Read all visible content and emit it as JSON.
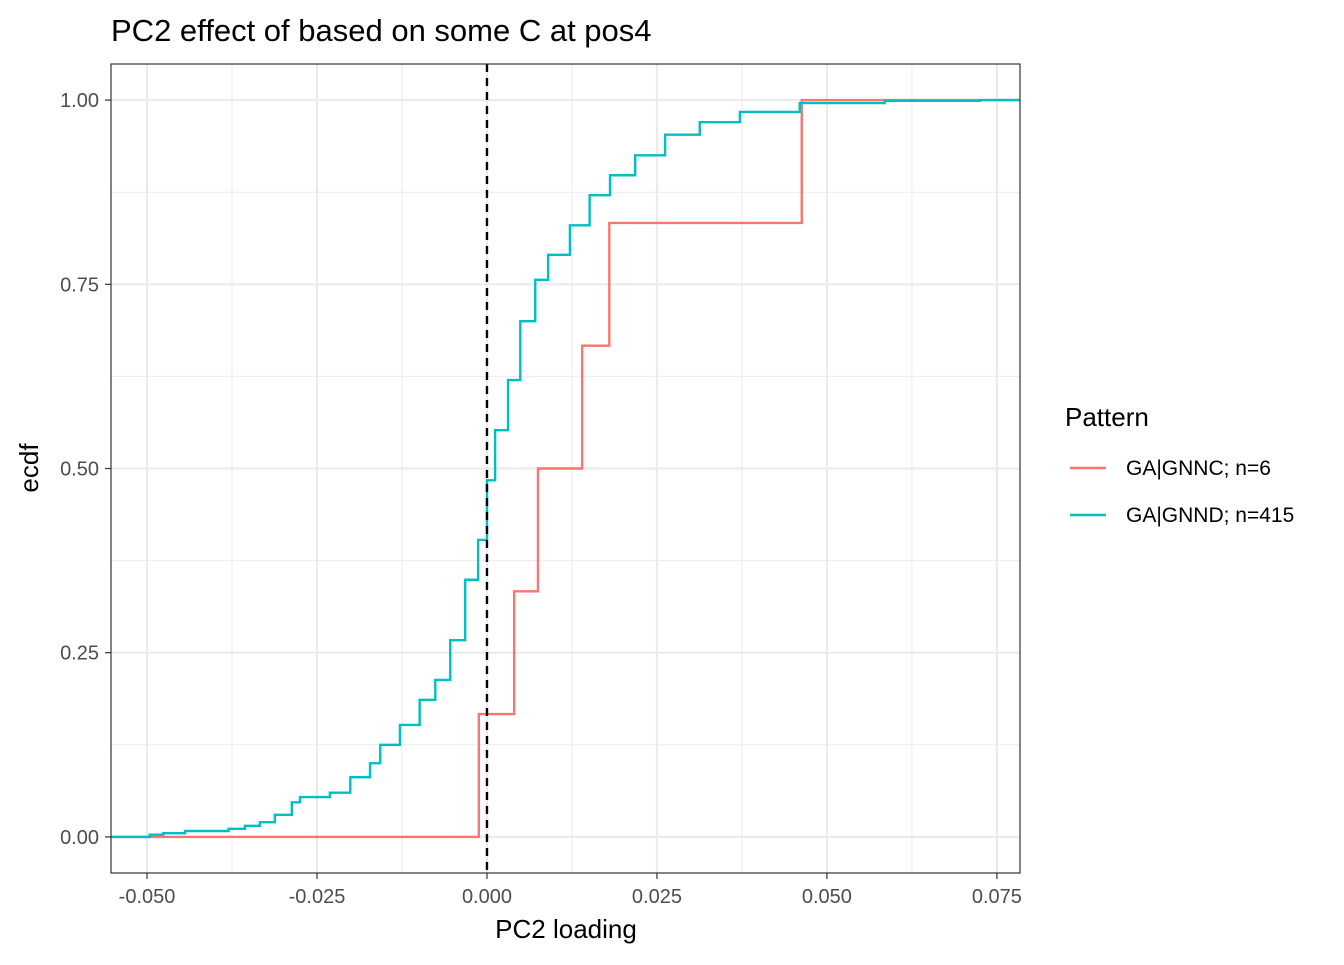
{
  "chart_data": {
    "type": "line",
    "subtype": "ecdf-step",
    "title": "PC2 effect of based on some C at pos4",
    "xlabel": "PC2 loading",
    "ylabel": "ecdf",
    "xlim": [
      -0.0553,
      0.0784
    ],
    "ylim": [
      -0.049,
      1.049
    ],
    "xticks": [
      -0.05,
      -0.025,
      0,
      0.025,
      0.05,
      0.075
    ],
    "xtick_labels": [
      "-0.050",
      "-0.025",
      "0.000",
      "0.025",
      "0.050",
      "0.075"
    ],
    "yticks": [
      0,
      0.25,
      0.5,
      0.75,
      1
    ],
    "ytick_labels": [
      "0.00",
      "0.25",
      "0.50",
      "0.75",
      "1.00"
    ],
    "grid": true,
    "vline": {
      "x": 0,
      "style": "dashed",
      "color": "#000000"
    },
    "legend": {
      "title": "Pattern",
      "position": "right"
    },
    "series": [
      {
        "name": "GA|GNNC; n=6",
        "color": "#F8766D",
        "x": [
          -0.0012,
          0.004,
          0.0075,
          0.014,
          0.018,
          0.0463
        ],
        "y": [
          0.1667,
          0.3333,
          0.5,
          0.6667,
          0.8333,
          1.0
        ]
      },
      {
        "name": "GA|GNND; n=415",
        "color": "#00BFC4",
        "x": [
          -0.0496,
          -0.0476,
          -0.0444,
          -0.038,
          -0.0356,
          -0.0334,
          -0.0312,
          -0.0287,
          -0.0275,
          -0.0231,
          -0.0201,
          -0.0172,
          -0.0157,
          -0.0128,
          -0.0099,
          -0.0076,
          -0.0054,
          -0.0032,
          -0.0013,
          0,
          0.0012,
          0.0031,
          0.0049,
          0.0071,
          0.009,
          0.0122,
          0.0151,
          0.0181,
          0.0218,
          0.0262,
          0.0313,
          0.0372,
          0.046,
          0.0585,
          0.0725
        ],
        "y": [
          0.003,
          0.005,
          0.008,
          0.011,
          0.015,
          0.02,
          0.03,
          0.047,
          0.054,
          0.06,
          0.081,
          0.1,
          0.125,
          0.152,
          0.186,
          0.213,
          0.267,
          0.349,
          0.403,
          0.484,
          0.552,
          0.62,
          0.7,
          0.756,
          0.79,
          0.83,
          0.871,
          0.898,
          0.925,
          0.953,
          0.97,
          0.984,
          0.996,
          0.999,
          1.0
        ]
      }
    ]
  }
}
